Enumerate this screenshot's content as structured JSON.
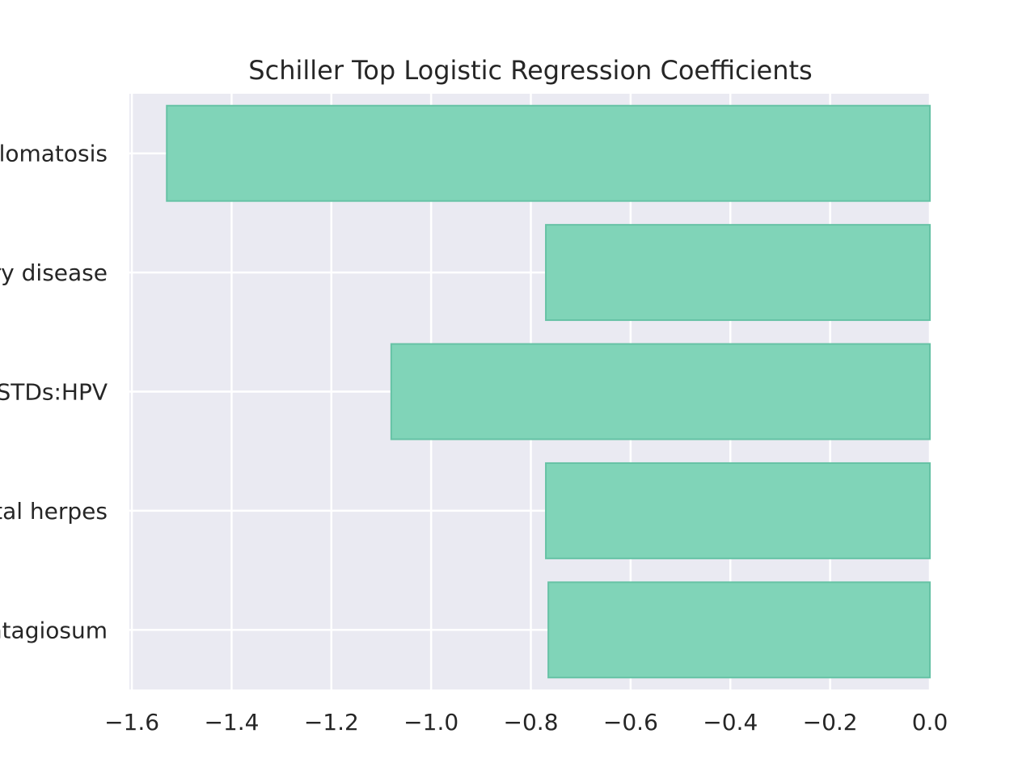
{
  "chart_data": {
    "type": "bar",
    "orientation": "horizontal",
    "title": "Schiller Top Logistic Regression Coefficients",
    "xlabel": "",
    "ylabel": "",
    "categories": [
      "STDs:condylomatosis",
      "STDs:pelvic inflammatory disease",
      "STDs:HPV",
      "STDs:genital herpes",
      "STDs:molluscum contagiosum"
    ],
    "visible_category_labels": [
      "ylomatosis",
      "ry disease",
      "STDs:HPV",
      "tal herpes",
      "ntagiosum"
    ],
    "values": [
      -1.53,
      -0.77,
      -1.08,
      -0.77,
      -0.765
    ],
    "xlim": [
      -1.605,
      0.0
    ],
    "xticks": [
      -1.6,
      -1.4,
      -1.2,
      -1.0,
      -0.8,
      -0.6,
      -0.4,
      -0.2,
      0.0
    ],
    "xtick_labels": [
      "−1.6",
      "−1.4",
      "−1.2",
      "−1.0",
      "−0.8",
      "−0.6",
      "−0.4",
      "−0.2",
      "0.0"
    ],
    "grid": true,
    "colors": {
      "bar_fill": "#80d4b8",
      "bar_edge": "#66c2a5",
      "plot_background": "#eaeaf2",
      "grid": "#ffffff",
      "text": "#262626"
    }
  }
}
